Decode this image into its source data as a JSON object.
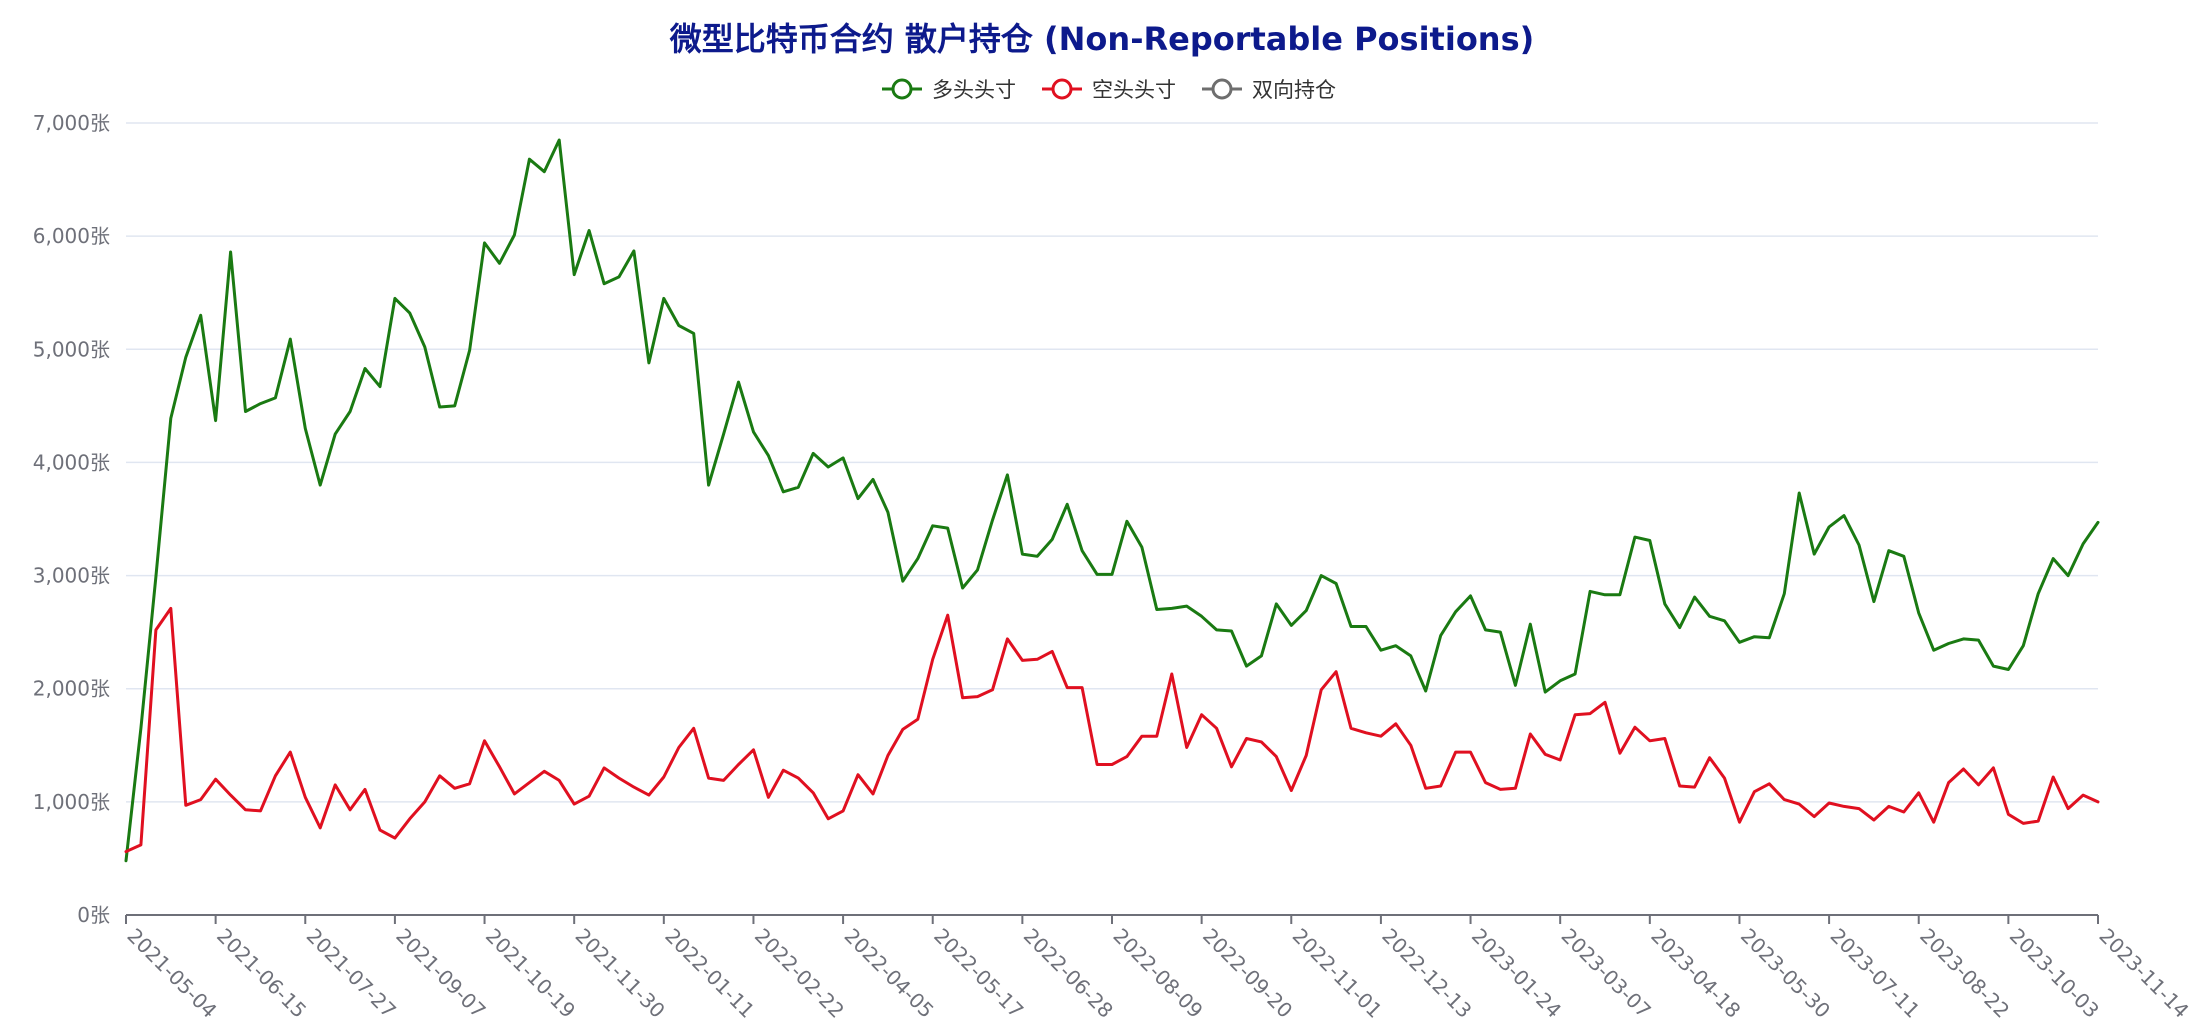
{
  "chart_data": {
    "type": "line",
    "title": "微型比特币合约 散户持仓 (Non-Reportable Positions)",
    "title_color": "#0d1a8c",
    "y_unit": "张",
    "ylim": [
      0,
      7000
    ],
    "y_ticks": [
      0,
      1000,
      2000,
      3000,
      4000,
      5000,
      6000,
      7000
    ],
    "y_tick_labels": [
      "0张",
      "1,000张",
      "2,000张",
      "3,000张",
      "4,000张",
      "5,000张",
      "6,000张",
      "7,000张"
    ],
    "x_range": [
      "2021-05-04",
      "2023-11-14"
    ],
    "x_tick_labels": [
      "2021-05-04",
      "2021-06-15",
      "2021-07-27",
      "2021-09-07",
      "2021-10-19",
      "2021-11-30",
      "2022-01-11",
      "2022-02-22",
      "2022-04-05",
      "2022-05-17",
      "2022-06-28",
      "2022-08-09",
      "2022-09-20",
      "2022-11-01",
      "2022-12-13",
      "2023-01-24",
      "2023-03-07",
      "2023-04-18",
      "2023-05-30",
      "2023-07-11",
      "2023-08-22",
      "2023-10-03",
      "2023-11-14"
    ],
    "grid": true,
    "legend_position": "top-center",
    "series": [
      {
        "name": "多头头寸",
        "color": "#1a7a12",
        "values": [
          480,
          1650,
          2990,
          4390,
          4930,
          5300,
          4370,
          5860,
          4450,
          4520,
          4570,
          5090,
          4300,
          3800,
          4250,
          4450,
          4830,
          4670,
          5450,
          5320,
          5020,
          4490,
          4500,
          4990,
          5940,
          5760,
          6010,
          6680,
          6570,
          6850,
          5660,
          6050,
          5580,
          5640,
          5870,
          4880,
          5450,
          5210,
          5140,
          3800,
          4250,
          4710,
          4270,
          4060,
          3740,
          3780,
          4080,
          3960,
          4040,
          3680,
          3850,
          3560,
          2950,
          3150,
          3440,
          3420,
          2890,
          3050,
          3490,
          3890,
          3190,
          3170,
          3320,
          3630,
          3220,
          3010,
          3010,
          3480,
          3250,
          2700,
          2710,
          2730,
          2640,
          2520,
          2510,
          2200,
          2290,
          2750,
          2560,
          2690,
          3000,
          2930,
          2550,
          2550,
          2340,
          2380,
          2290,
          1980,
          2470,
          2680,
          2820,
          2520,
          2500,
          2030,
          2570,
          1970,
          2070,
          2130,
          2860,
          2830,
          2830,
          3340,
          3310,
          2750,
          2540,
          2810,
          2640,
          2600,
          2410,
          2460,
          2450,
          2840,
          3730,
          3190,
          3430,
          3530,
          3270,
          2770,
          3220,
          3170,
          2670,
          2340,
          2400,
          2440,
          2430,
          2200,
          2170,
          2380,
          2840,
          3150,
          3000,
          3280,
          3470
        ]
      },
      {
        "name": "空头头寸",
        "color": "#e01020",
        "values": [
          560,
          620,
          2520,
          2710,
          970,
          1020,
          1200,
          1060,
          930,
          920,
          1230,
          1440,
          1040,
          770,
          1150,
          930,
          1110,
          750,
          680,
          850,
          1000,
          1230,
          1120,
          1160,
          1540,
          1310,
          1070,
          1170,
          1270,
          1190,
          980,
          1050,
          1300,
          1210,
          1130,
          1060,
          1220,
          1480,
          1650,
          1210,
          1190,
          1330,
          1460,
          1040,
          1280,
          1210,
          1080,
          850,
          920,
          1240,
          1070,
          1410,
          1640,
          1730,
          2260,
          2650,
          1920,
          1930,
          1990,
          2440,
          2250,
          2260,
          2330,
          2010,
          2010,
          1330,
          1330,
          1400,
          1580,
          1580,
          2130,
          1480,
          1770,
          1650,
          1310,
          1560,
          1530,
          1400,
          1100,
          1410,
          1990,
          2150,
          1650,
          1610,
          1580,
          1690,
          1500,
          1120,
          1140,
          1440,
          1440,
          1170,
          1110,
          1120,
          1600,
          1420,
          1370,
          1770,
          1780,
          1880,
          1430,
          1660,
          1540,
          1560,
          1140,
          1130,
          1390,
          1210,
          820,
          1090,
          1160,
          1020,
          980,
          870,
          990,
          960,
          940,
          840,
          960,
          910,
          1080,
          820,
          1170,
          1290,
          1150,
          1300,
          890,
          810,
          830,
          1220,
          940,
          1060,
          1000
        ]
      },
      {
        "name": "双向持仓",
        "color": "#6e6e6e",
        "values": []
      }
    ]
  }
}
